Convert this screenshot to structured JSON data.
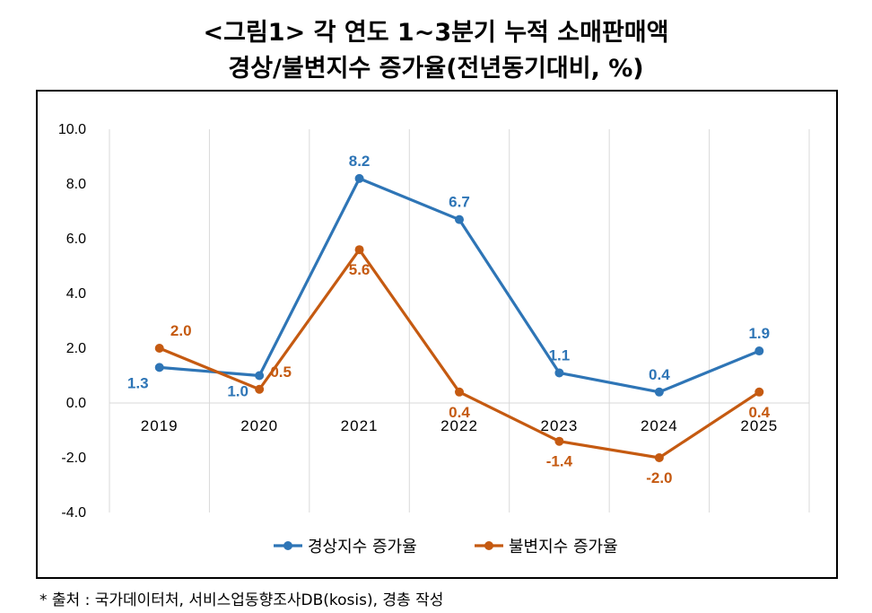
{
  "title": {
    "line1": "<그림1> 각 연도 1~3분기 누적 소매판매액",
    "line2": "경상/불변지수 증가율(전년동기대비, %)"
  },
  "footnote": "* 출처 : 국가데이터처, 서비스업동향조사DB(kosis), 경총 작성",
  "colors": {
    "series1": "#2E75B6",
    "series2": "#C55A11",
    "grid": "#D9D9D9"
  },
  "chart_data": {
    "type": "line",
    "title": "<그림1> 각 연도 1~3분기 누적 소매판매액 경상/불변지수 증가율(전년동기대비, %)",
    "xlabel": "",
    "ylabel": "",
    "categories": [
      "2019",
      "2020",
      "2021",
      "2022",
      "2023",
      "2024",
      "2025"
    ],
    "ylim": [
      -4.0,
      10.0
    ],
    "yticks": [
      "10.0",
      "8.0",
      "6.0",
      "4.0",
      "2.0",
      "0.0",
      "-2.0",
      "-4.0"
    ],
    "ytick_values": [
      10,
      8,
      6,
      4,
      2,
      0,
      -2,
      -4
    ],
    "grid": true,
    "legend": "bottom",
    "series": [
      {
        "name": "경상지수 증가율",
        "values": [
          1.3,
          1.0,
          8.2,
          6.7,
          1.1,
          0.4,
          1.9
        ],
        "labels": [
          "1.3",
          "1.0",
          "8.2",
          "6.7",
          "1.1",
          "0.4",
          "1.9"
        ]
      },
      {
        "name": "불변지수 증가율",
        "values": [
          2.0,
          0.5,
          5.6,
          0.4,
          -1.4,
          -2.0,
          0.4
        ],
        "labels": [
          "2.0",
          "0.5",
          "5.6",
          "0.4",
          "-1.4",
          "-2.0",
          "0.4"
        ]
      }
    ]
  }
}
